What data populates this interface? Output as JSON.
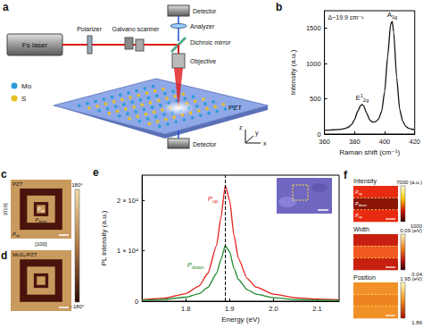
{
  "chart_data": [
    {
      "panel": "b",
      "type": "line",
      "x_label": "Raman shift (cm⁻¹)",
      "y_label": "Intensity (a.u.)",
      "annotation": "Δ~19.9 cm⁻¹",
      "x": [
        360,
        362,
        364,
        366,
        368,
        370,
        372,
        374,
        376,
        378,
        380,
        382,
        384,
        385,
        386,
        388,
        390,
        392,
        394,
        396,
        398,
        400,
        402,
        404,
        405,
        406,
        408,
        410,
        412,
        414,
        416,
        418,
        420
      ],
      "series": [
        {
          "color": "#111111",
          "values": [
            55,
            55,
            58,
            60,
            62,
            66,
            72,
            82,
            98,
            135,
            205,
            320,
            405,
            420,
            400,
            300,
            205,
            170,
            175,
            215,
            320,
            600,
            1100,
            1560,
            1600,
            1450,
            800,
            350,
            180,
            110,
            82,
            70,
            62
          ]
        }
      ],
      "peaks": [
        {
          "label": {
            "base": "E",
            "sup": "1",
            "sub": "2g"
          },
          "x": 385
        },
        {
          "label": {
            "base": "A",
            "sub": "1g"
          },
          "x": 405
        }
      ],
      "xlim": [
        360,
        420
      ],
      "xticks": [
        360,
        380,
        400,
        420
      ],
      "ylim": [
        0,
        1750
      ],
      "yticks": [
        0,
        500,
        1000,
        1500
      ],
      "grid": false
    },
    {
      "panel": "e",
      "type": "line",
      "x_label": "Energy (eV)",
      "y_label": "PL intensity (a.u.)",
      "x": [
        1.7,
        1.75,
        1.8,
        1.83,
        1.85,
        1.87,
        1.88,
        1.89,
        1.9,
        1.91,
        1.92,
        1.94,
        1.96,
        2.0,
        2.05,
        2.1,
        2.15
      ],
      "series": [
        {
          "name": {
            "base": "P",
            "sub": "up"
          },
          "color": "#e41e1a",
          "values": [
            300,
            600,
            1500,
            3000,
            5500,
            11000,
            16500,
            23000,
            20000,
            13000,
            8500,
            4500,
            2800,
            1400,
            700,
            400,
            300
          ]
        },
        {
          "name": {
            "base": "P",
            "sub": "down"
          },
          "color": "#1f8a2c",
          "values": [
            200,
            350,
            800,
            1500,
            2700,
            5500,
            8200,
            11000,
            9800,
            6500,
            4300,
            2300,
            1400,
            700,
            350,
            200,
            150
          ]
        }
      ],
      "peak_line": 1.89,
      "xlim": [
        1.7,
        2.15
      ],
      "xticks": [
        1.8,
        1.9,
        {
          "value": 2,
          "label": "2.0"
        },
        2.1
      ],
      "ylim": [
        0,
        25000
      ],
      "yticks": [
        0,
        {
          "value": 10000,
          "label": "1 × 10⁴"
        },
        {
          "value": 20000,
          "label": "2 × 10⁴"
        }
      ],
      "grid": false
    }
  ],
  "figure": {
    "a": {
      "panel": "a",
      "labels": {
        "laser": "Fs laser",
        "polarizer": "Polarizer",
        "scanner": "Galvano scanner",
        "detector_top": "Detector",
        "analyzer": "Analyzer",
        "mirror": "Dichroic mirror",
        "objective": "Objective",
        "detector_bottom": "Detector",
        "substrate": "PZT"
      },
      "legend": [
        {
          "label": "Mo",
          "color": "#2a9ad8"
        },
        {
          "label": "S",
          "color": "#e8c020"
        }
      ],
      "axes": [
        "x",
        "y",
        "z"
      ]
    },
    "c": {
      "panel": "c",
      "title": "PZT",
      "domains": [
        {
          "base": "P",
          "sub": "up"
        },
        {
          "base": "P",
          "sub": "down"
        },
        {
          "base": "P",
          "sub": "up"
        }
      ],
      "directions": [
        "[010]",
        "[100]"
      ],
      "colorbar": [
        "180°",
        "−180°"
      ]
    },
    "d": {
      "panel": "d",
      "title": "MoS₂/PZT"
    },
    "b": {
      "panel": "b"
    },
    "e": {
      "panel": "e"
    },
    "f": {
      "panel": "f",
      "domains": [
        {
          "base": "P",
          "sub": "up"
        },
        {
          "base": "P",
          "sub": "down"
        },
        {
          "base": "P",
          "sub": "up"
        }
      ],
      "maps": [
        {
          "title": "Intensity",
          "max": 7000,
          "min": 1000,
          "unit": "(a.u.)"
        },
        {
          "title": "Width",
          "max": 0.09,
          "min": 0.04,
          "unit": "(eV)"
        },
        {
          "title": "Position",
          "max": 1.95,
          "min": 1.86,
          "unit": "(eV)"
        }
      ]
    }
  }
}
